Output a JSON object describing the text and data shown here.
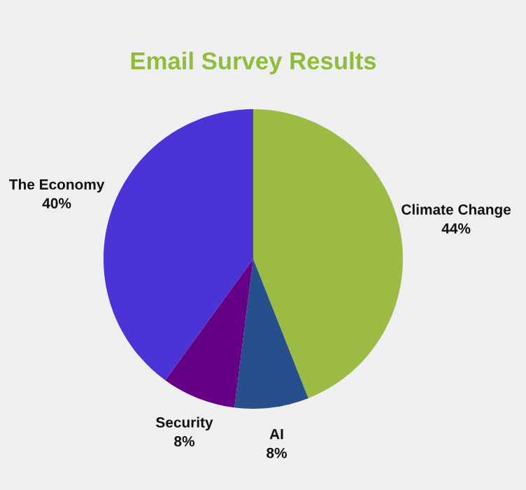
{
  "chart_data": {
    "type": "pie",
    "title": "Email Survey Results",
    "categories": [
      "Climate Change",
      "AI",
      "Security",
      "The Economy"
    ],
    "values": [
      44,
      8,
      8,
      40
    ],
    "value_labels": [
      "44%",
      "8%",
      "8%",
      "40%"
    ],
    "colors": [
      "#9bbb45",
      "#274f8c",
      "#650087",
      "#4a34d6"
    ],
    "legend": false
  }
}
